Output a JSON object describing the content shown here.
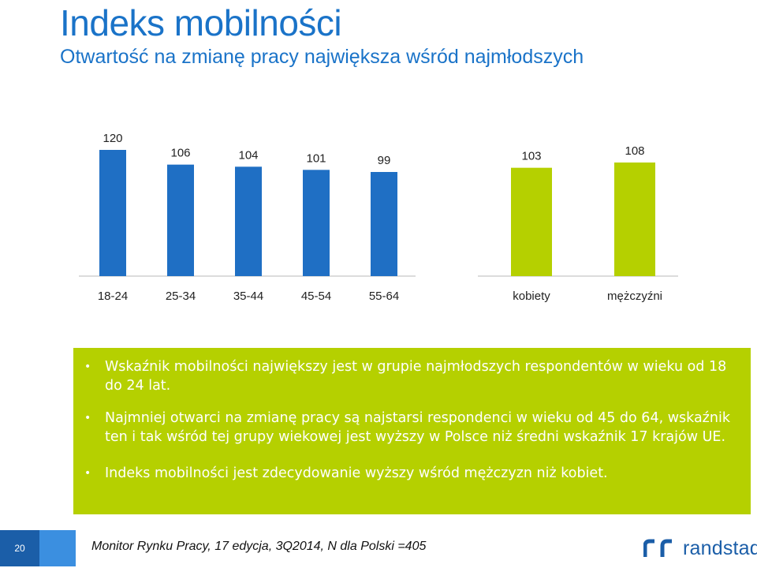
{
  "header": {
    "title": "Indeks mobilności",
    "subtitle": "Otwartość na zmianę pracy największa wśród najmłodszych"
  },
  "chart_data": [
    {
      "type": "bar",
      "categories": [
        "18-24",
        "25-34",
        "35-44",
        "45-54",
        "55-64"
      ],
      "values": [
        120,
        106,
        104,
        101,
        99
      ],
      "color": "#1f6fc4"
    },
    {
      "type": "bar",
      "categories": [
        "kobiety",
        "mężczyźni"
      ],
      "values": [
        103,
        108
      ],
      "color": "#b5d000"
    }
  ],
  "bullets": [
    "Wskaźnik mobilności największy jest w grupie najmłodszych respondentów w wieku od 18 do 24 lat.",
    "Najmniej otwarci na zmianę pracy są najstarsi respondenci w wieku od 45 do 64, wskaźnik ten i tak wśród tej grupy wiekowej jest wyższy w Polsce niż średni wskaźnik 17 krajów UE.",
    "Indeks mobilności jest zdecydowanie wyższy wśród mężczyzn niż kobiet."
  ],
  "footer": {
    "page_number": "20",
    "source": "Monitor Rynku Pracy, 17 edycja,  3Q2014, N dla Polski =405",
    "logo_text": "randstad"
  },
  "colors": {
    "title": "#1a73c8",
    "age_bars": "#1f6fc4",
    "gender_bars": "#b5d000",
    "callout_bg": "#b5d000",
    "brand": "#1b5ea8"
  }
}
